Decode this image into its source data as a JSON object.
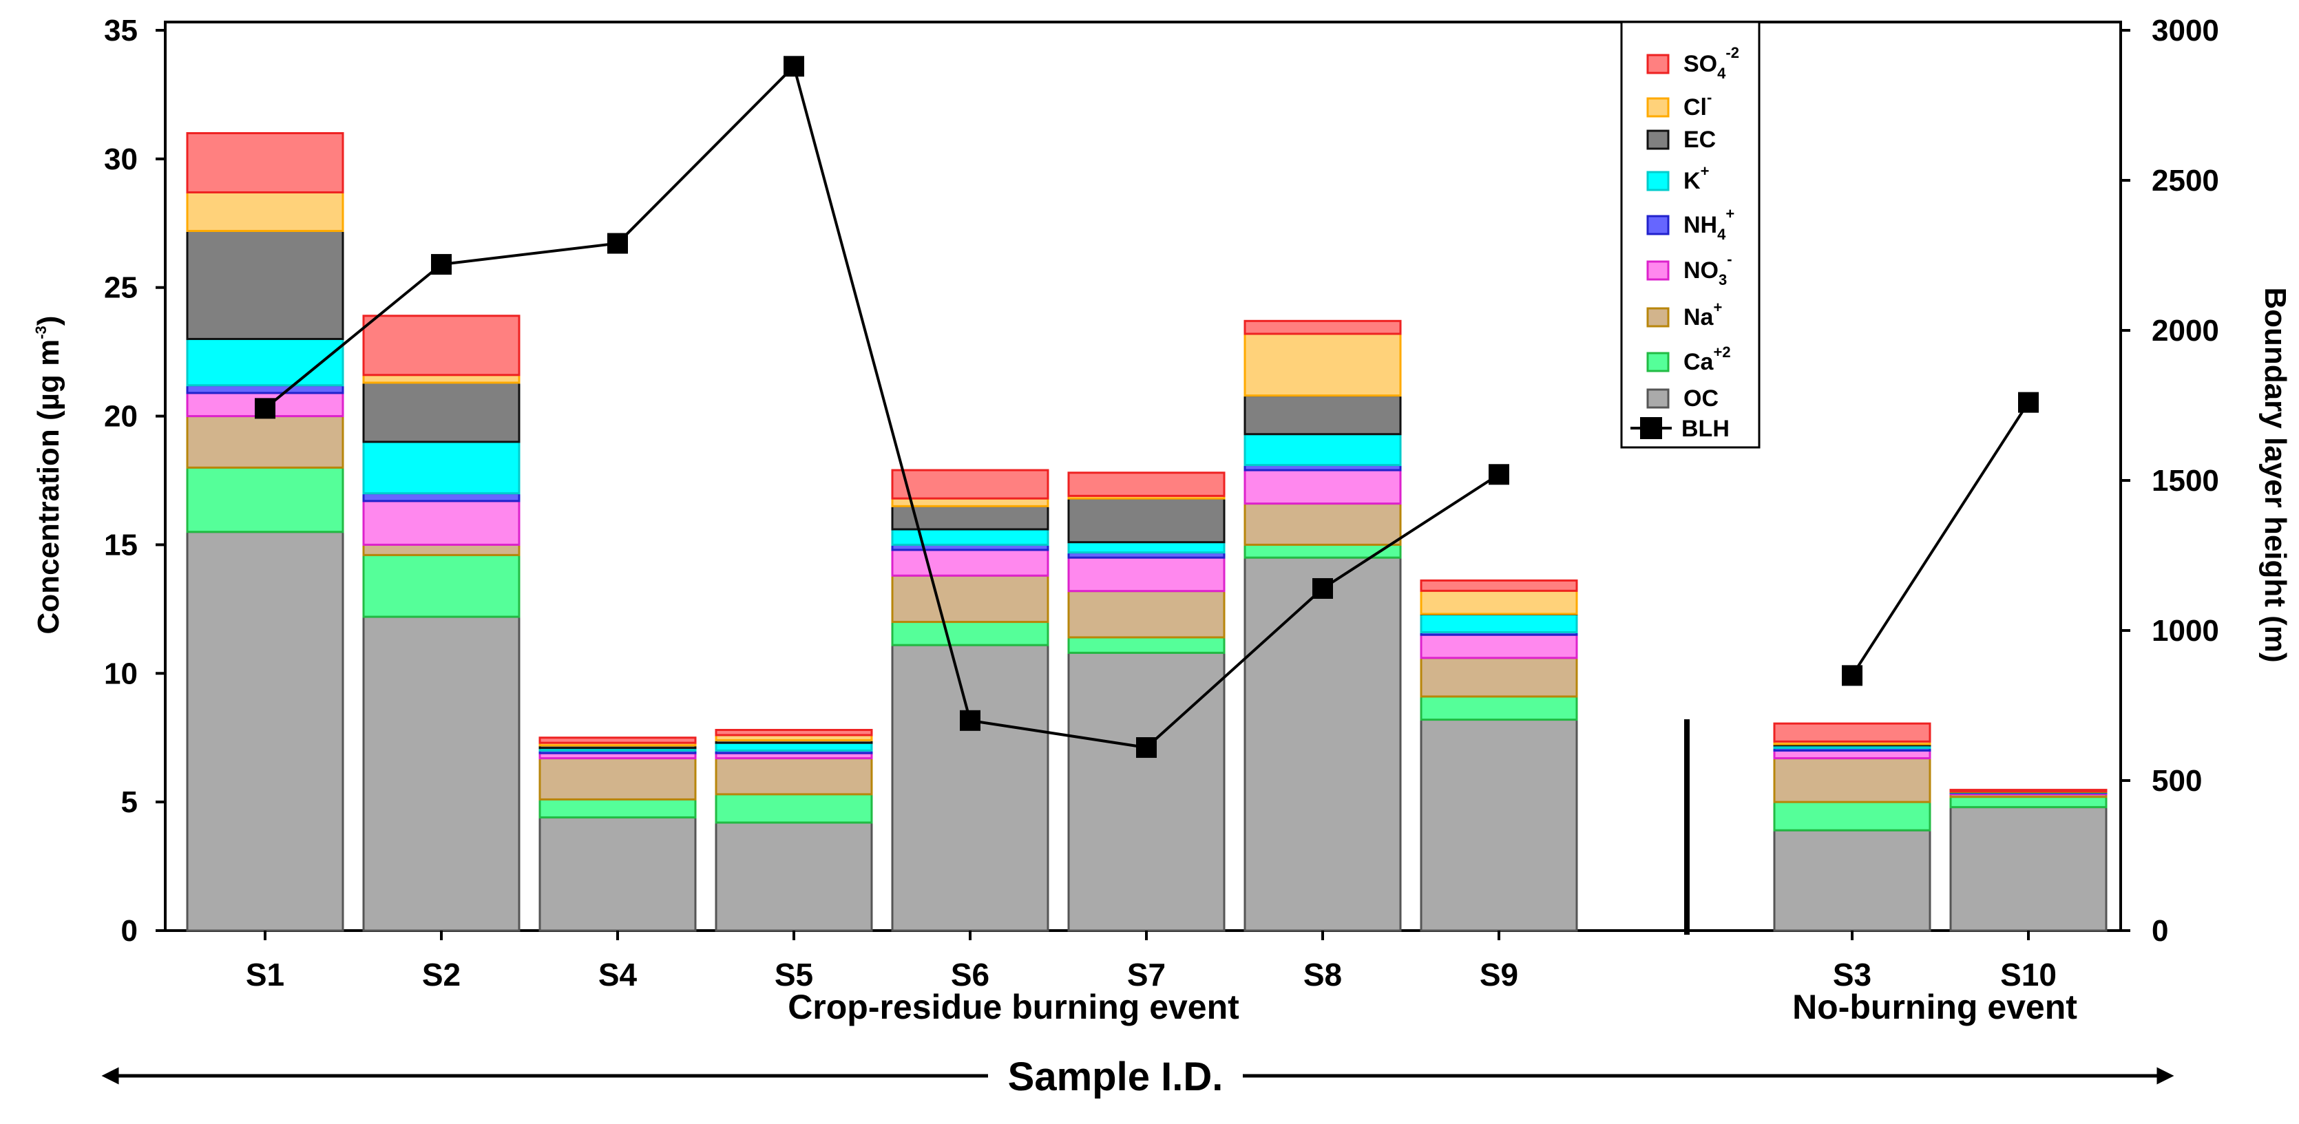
{
  "chart_data": {
    "type": "bar",
    "stacked": true,
    "categories": [
      "S1",
      "S2",
      "S4",
      "S5",
      "S6",
      "S7",
      "S8",
      "S9",
      "S3",
      "S10"
    ],
    "groups": [
      {
        "label": "Crop-residue burning event",
        "categories": [
          "S1",
          "S2",
          "S4",
          "S5",
          "S6",
          "S7",
          "S8",
          "S9"
        ]
      },
      {
        "label": "No-burning event",
        "categories": [
          "S3",
          "S10"
        ]
      }
    ],
    "xlabel": "Sample I.D.",
    "ylabel": "Concentration (µg m",
    "ylabel_sup": "-3",
    "ylabel_end": ")",
    "ylim": [
      0,
      35
    ],
    "yticks": [
      0,
      5,
      10,
      15,
      20,
      25,
      30,
      35
    ],
    "y2label": "Boundary layer height (m)",
    "y2lim": [
      0,
      3000
    ],
    "y2ticks": [
      0,
      500,
      1000,
      1500,
      2000,
      2500,
      3000
    ],
    "series": [
      {
        "name": "OC",
        "base": "OC",
        "sup": "",
        "sub": "",
        "fill": "#aaaaaa",
        "stroke": "#555555",
        "values": [
          15.5,
          12.2,
          4.4,
          4.2,
          11.1,
          10.8,
          14.5,
          8.2,
          3.9,
          4.8
        ]
      },
      {
        "name": "Ca+2",
        "base": "Ca",
        "sup": "+2",
        "sub": "",
        "fill": "#55ff99",
        "stroke": "#22bb44",
        "values": [
          2.5,
          2.4,
          0.7,
          1.1,
          0.9,
          0.6,
          0.5,
          0.9,
          1.1,
          0.4
        ]
      },
      {
        "name": "Na+",
        "base": "Na",
        "sup": "+",
        "sub": "",
        "fill": "#d2b48c",
        "stroke": "#b8860b",
        "values": [
          2.0,
          0.4,
          1.6,
          1.4,
          1.8,
          1.8,
          1.6,
          1.5,
          1.7,
          0.1
        ]
      },
      {
        "name": "NO3-",
        "base": "NO",
        "sup": "-",
        "sub": "3",
        "fill": "#ff88ee",
        "stroke": "#dd22cc",
        "values": [
          0.9,
          1.7,
          0.2,
          0.2,
          1.0,
          1.3,
          1.3,
          0.9,
          0.3,
          0.05
        ]
      },
      {
        "name": "NH4+",
        "base": "NH",
        "sup": "+",
        "sub": "4",
        "fill": "#6666ff",
        "stroke": "#2222cc",
        "values": [
          0.3,
          0.3,
          0.1,
          0.1,
          0.2,
          0.2,
          0.2,
          0.1,
          0.1,
          0.02
        ]
      },
      {
        "name": "K+",
        "base": "K",
        "sup": "+",
        "sub": "",
        "fill": "#00ffff",
        "stroke": "#00cccc",
        "values": [
          1.8,
          2.0,
          0.1,
          0.3,
          0.6,
          0.4,
          1.2,
          0.7,
          0.1,
          0.02
        ]
      },
      {
        "name": "EC",
        "base": "EC",
        "sup": "",
        "sub": "",
        "fill": "#808080",
        "stroke": "#111111",
        "values": [
          4.2,
          2.3,
          0.1,
          0.1,
          0.9,
          1.7,
          1.5,
          0.01,
          0.05,
          0.01
        ]
      },
      {
        "name": "Cl-",
        "base": "Cl",
        "sup": "-",
        "sub": "",
        "fill": "#ffd27a",
        "stroke": "#ffaa00",
        "values": [
          1.5,
          0.3,
          0.1,
          0.2,
          0.3,
          0.1,
          2.4,
          0.9,
          0.1,
          0.02
        ]
      },
      {
        "name": "SO4-2",
        "base": "SO",
        "sup": "-2",
        "sub": "4",
        "fill": "#ff8080",
        "stroke": "#ee2222",
        "values": [
          2.3,
          2.3,
          0.2,
          0.2,
          1.1,
          0.9,
          0.5,
          0.4,
          0.7,
          0.05
        ]
      }
    ],
    "line_series": {
      "name": "BLH",
      "axis": "right",
      "color": "#000000",
      "marker": "square",
      "values": [
        1740,
        2220,
        2290,
        2880,
        700,
        610,
        1140,
        1520,
        850,
        1760
      ]
    },
    "legend": {
      "position": "top-right",
      "order": [
        "SO4-2",
        "Cl-",
        "EC",
        "K+",
        "NH4+",
        "NO3-",
        "Na+",
        "Ca+2",
        "OC",
        "BLH"
      ]
    },
    "separator_between": [
      "S9",
      "S3"
    ]
  }
}
